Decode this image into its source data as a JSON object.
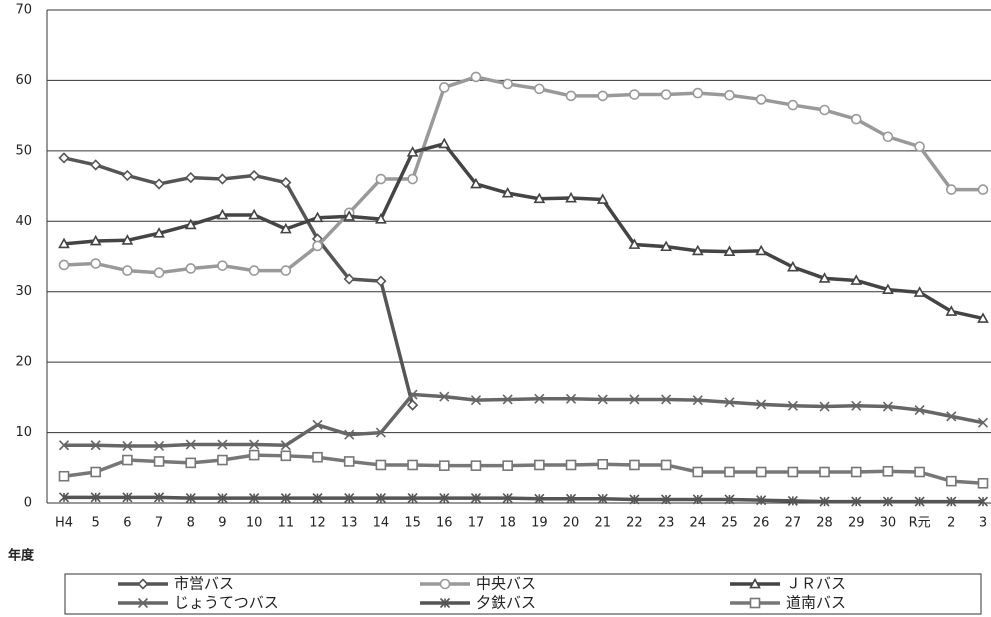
{
  "chart_data": {
    "type": "line",
    "x_label": "年度",
    "categories": [
      "H4",
      "5",
      "6",
      "7",
      "8",
      "9",
      "10",
      "11",
      "12",
      "13",
      "14",
      "15",
      "16",
      "17",
      "18",
      "19",
      "20",
      "21",
      "22",
      "23",
      "24",
      "25",
      "26",
      "27",
      "28",
      "29",
      "30",
      "R元",
      "2",
      "3"
    ],
    "ylim": [
      0,
      70
    ],
    "yticks": [
      0,
      10,
      20,
      30,
      40,
      50,
      60,
      70
    ],
    "grid": true,
    "series": [
      {
        "name": "市営バス",
        "color": "#555555",
        "marker": "diamond",
        "values": [
          49,
          48,
          46.5,
          45.3,
          46.2,
          46,
          46.5,
          45.5,
          37.5,
          31.8,
          31.5,
          13.9,
          null,
          null,
          null,
          null,
          null,
          null,
          null,
          null,
          null,
          null,
          null,
          null,
          null,
          null,
          null,
          null,
          null,
          null
        ]
      },
      {
        "name": "中央バス",
        "color": "#999999",
        "marker": "circle",
        "values": [
          33.8,
          34,
          33,
          32.7,
          33.3,
          33.7,
          33,
          33,
          36.5,
          41.2,
          46,
          46,
          59,
          60.5,
          59.5,
          58.8,
          57.8,
          57.8,
          58,
          58,
          58.2,
          57.9,
          57.3,
          56.5,
          55.8,
          54.5,
          52,
          50.6,
          44.5,
          44.5
        ]
      },
      {
        "name": "ＪＲバス",
        "color": "#444444",
        "marker": "triangle",
        "values": [
          36.8,
          37.2,
          37.3,
          38.3,
          39.5,
          40.9,
          40.9,
          38.9,
          40.5,
          40.7,
          40.3,
          49.8,
          51,
          45.3,
          44,
          43.2,
          43.3,
          43.1,
          36.7,
          36.4,
          35.8,
          35.7,
          35.8,
          33.5,
          31.9,
          31.6,
          30.3,
          29.9,
          27.2,
          26.2
        ]
      },
      {
        "name": "じょうてつバス",
        "color": "#666666",
        "marker": "cross",
        "values": [
          8.2,
          8.2,
          8.1,
          8.1,
          8.3,
          8.3,
          8.3,
          8.2,
          11.1,
          9.7,
          10,
          15.4,
          15.1,
          14.6,
          14.7,
          14.8,
          14.8,
          14.7,
          14.7,
          14.7,
          14.6,
          14.3,
          14,
          13.8,
          13.7,
          13.8,
          13.7,
          13.2,
          12.3,
          11.4
        ]
      },
      {
        "name": "夕鉄バス",
        "color": "#555555",
        "marker": "asterisk",
        "values": [
          0.8,
          0.8,
          0.8,
          0.8,
          0.7,
          0.7,
          0.7,
          0.7,
          0.7,
          0.7,
          0.7,
          0.7,
          0.7,
          0.7,
          0.7,
          0.6,
          0.6,
          0.6,
          0.5,
          0.5,
          0.5,
          0.5,
          0.4,
          0.3,
          0.2,
          0.2,
          0.2,
          0.2,
          0.2,
          0.2
        ]
      },
      {
        "name": "道南バス",
        "color": "#777777",
        "marker": "square",
        "values": [
          3.8,
          4.4,
          6.1,
          5.9,
          5.7,
          6.1,
          6.8,
          6.7,
          6.5,
          5.9,
          5.4,
          5.4,
          5.3,
          5.3,
          5.3,
          5.4,
          5.4,
          5.5,
          5.4,
          5.4,
          4.4,
          4.4,
          4.4,
          4.4,
          4.4,
          4.4,
          4.5,
          4.4,
          3.1,
          2.8
        ]
      }
    ]
  }
}
